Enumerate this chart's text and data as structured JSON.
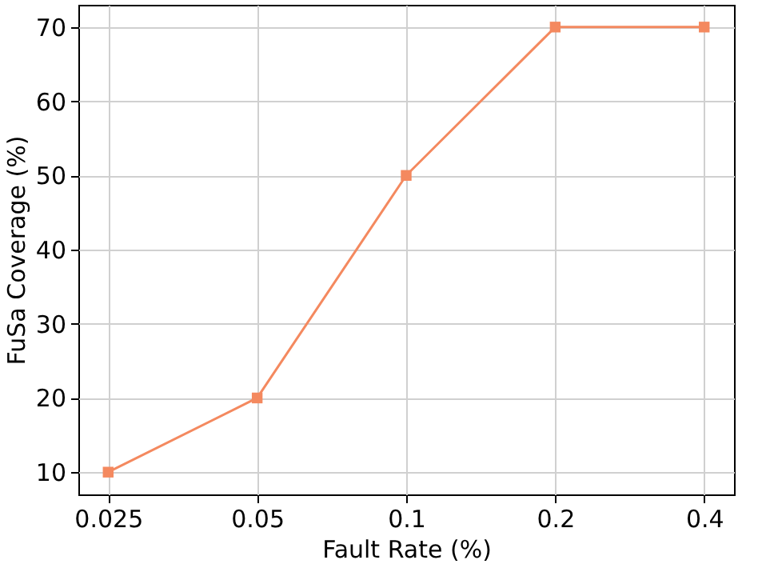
{
  "chart_data": {
    "type": "line",
    "xlabel": "Fault Rate (%)",
    "ylabel": "FuSa Coverage (%)",
    "categories": [
      "0.025",
      "0.05",
      "0.1",
      "0.2",
      "0.4"
    ],
    "series": [
      {
        "color": "#f4895f",
        "values": [
          10,
          20,
          50,
          70,
          70
        ]
      }
    ],
    "ylim": [
      7,
      73
    ],
    "yticks": [
      10,
      20,
      30,
      40,
      50,
      60,
      70
    ],
    "grid": true,
    "marker": "square",
    "line_style": "solid"
  }
}
